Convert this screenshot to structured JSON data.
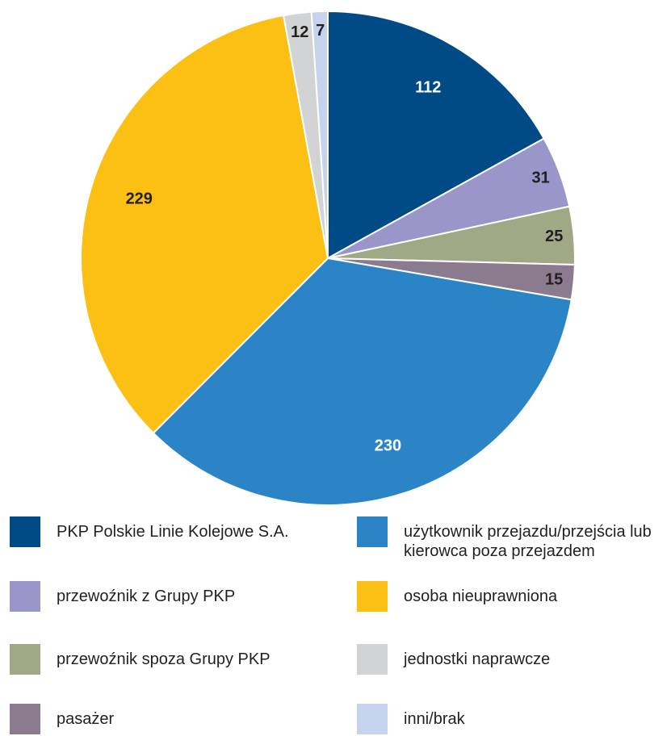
{
  "chart_data": {
    "type": "pie",
    "categories": [
      "PKP Polskie Linie Kolejowe S.A.",
      "przewoźnik z Grupy PKP",
      "przewoźnik spoza Grupy PKP",
      "pasażer",
      "użytkownik przejazdu/przejścia lub kierowca poza przejazdem",
      "osoba nieuprawniona",
      "jednostki naprawcze",
      "inni/brak"
    ],
    "values": [
      112,
      31,
      25,
      15,
      230,
      229,
      12,
      7
    ],
    "colors": [
      "#004a85",
      "#9b96c9",
      "#a0a886",
      "#8a7b8f",
      "#2a84c6",
      "#fcbf13",
      "#d1d3d4",
      "#c5d3ec"
    ]
  }
}
